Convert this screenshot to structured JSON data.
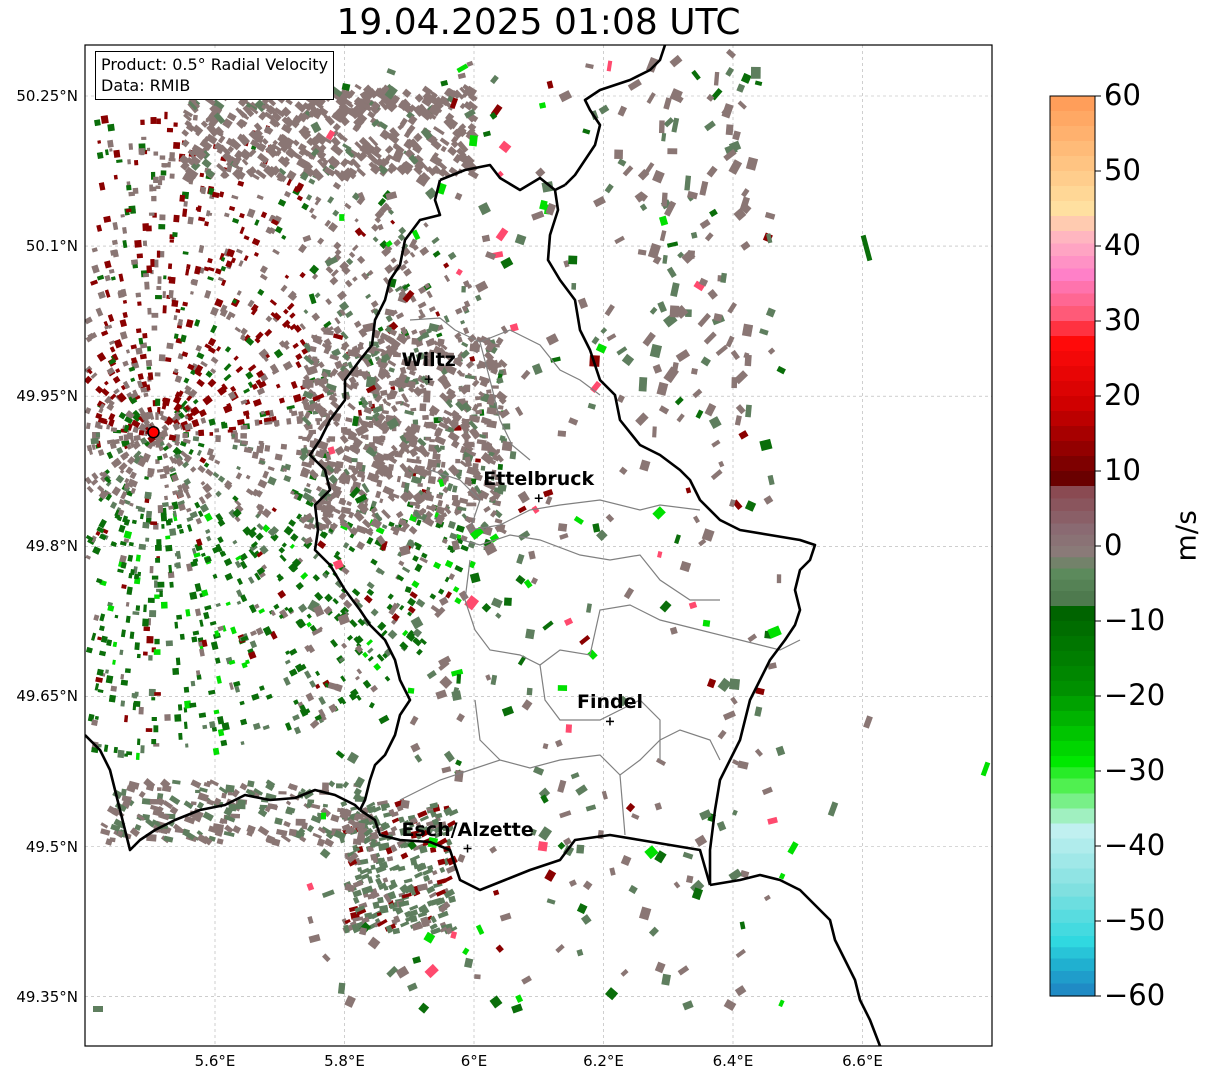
{
  "title": "19.04.2025 01:08 UTC",
  "info": {
    "product": "Product: 0.5° Radial Velocity",
    "source": "Data: RMIB"
  },
  "lat_ticks": [
    {
      "label": "50.25°N",
      "value": 50.25
    },
    {
      "label": "50.1°N",
      "value": 50.1
    },
    {
      "label": "49.95°N",
      "value": 49.95
    },
    {
      "label": "49.8°N",
      "value": 49.8
    },
    {
      "label": "49.65°N",
      "value": 49.65
    },
    {
      "label": "49.5°N",
      "value": 49.5
    },
    {
      "label": "49.35°N",
      "value": 49.35
    }
  ],
  "lon_ticks": [
    {
      "label": "5.6°E",
      "value": 5.6
    },
    {
      "label": "5.8°E",
      "value": 5.8
    },
    {
      "label": "6°E",
      "value": 6.0
    },
    {
      "label": "6.2°E",
      "value": 6.2
    },
    {
      "label": "6.4°E",
      "value": 6.4
    },
    {
      "label": "6.6°E",
      "value": 6.6
    }
  ],
  "cities": [
    {
      "name": "Wiltz",
      "lon": 5.93,
      "lat": 49.967
    },
    {
      "name": "Ettelbruck",
      "lon": 6.1,
      "lat": 49.848
    },
    {
      "name": "Findel",
      "lon": 6.21,
      "lat": 49.625
    },
    {
      "name": "Esch/Alzette",
      "lon": 5.99,
      "lat": 49.498
    }
  ],
  "radar_site": {
    "lon": 5.505,
    "lat": 49.914
  },
  "colorbar": {
    "label": "m/s",
    "min": -60,
    "max": 60,
    "ticks": [
      {
        "label": "60",
        "value": 60
      },
      {
        "label": "50",
        "value": 50
      },
      {
        "label": "40",
        "value": 40
      },
      {
        "label": "30",
        "value": 30
      },
      {
        "label": "20",
        "value": 20
      },
      {
        "label": "10",
        "value": 10
      },
      {
        "label": "0",
        "value": 0
      },
      {
        "label": "−10",
        "value": -10
      },
      {
        "label": "−20",
        "value": -20
      },
      {
        "label": "−30",
        "value": -30
      },
      {
        "label": "−40",
        "value": -40
      },
      {
        "label": "−50",
        "value": -50
      },
      {
        "label": "−60",
        "value": -60
      }
    ],
    "stops": [
      {
        "v": 60,
        "color": "#ff9e5a"
      },
      {
        "v": 52,
        "color": "#ffc482"
      },
      {
        "v": 46,
        "color": "#ffe0a0"
      },
      {
        "v": 42,
        "color": "#ffb6c0"
      },
      {
        "v": 37,
        "color": "#ff80c8"
      },
      {
        "v": 32,
        "color": "#ff5a78"
      },
      {
        "v": 28,
        "color": "#ff0a0a"
      },
      {
        "v": 20,
        "color": "#d00000"
      },
      {
        "v": 10,
        "color": "#6a0000"
      },
      {
        "v": 8,
        "color": "#8a4a52"
      },
      {
        "v": 3,
        "color": "#8a6a72"
      },
      {
        "v": 0,
        "color": "#8a7a78"
      },
      {
        "v": -3,
        "color": "#5c8a5c"
      },
      {
        "v": -6,
        "color": "#4e7a4e"
      },
      {
        "v": -8,
        "color": "#006400"
      },
      {
        "v": -18,
        "color": "#009000"
      },
      {
        "v": -28,
        "color": "#00e800"
      },
      {
        "v": -31,
        "color": "#50f050"
      },
      {
        "v": -35,
        "color": "#a0f0c0"
      },
      {
        "v": -37,
        "color": "#c0f0f0"
      },
      {
        "v": -45,
        "color": "#80e0e0"
      },
      {
        "v": -52,
        "color": "#30d8e0"
      },
      {
        "v": -55,
        "color": "#20b0d0"
      },
      {
        "v": -60,
        "color": "#1e78c0"
      }
    ]
  },
  "colors": {
    "border_country": "#000000",
    "border_canton": "#808080",
    "grid": "#b0b0b0",
    "radar_site": "#ff0000",
    "echo_gray": "#8a7674",
    "echo_green_dark": "#0a6e0a",
    "echo_green_gray": "#5e7e5e",
    "echo_green_bright": "#00e000",
    "echo_red_dark": "#8a0000",
    "echo_pink": "#ff4a6e"
  }
}
